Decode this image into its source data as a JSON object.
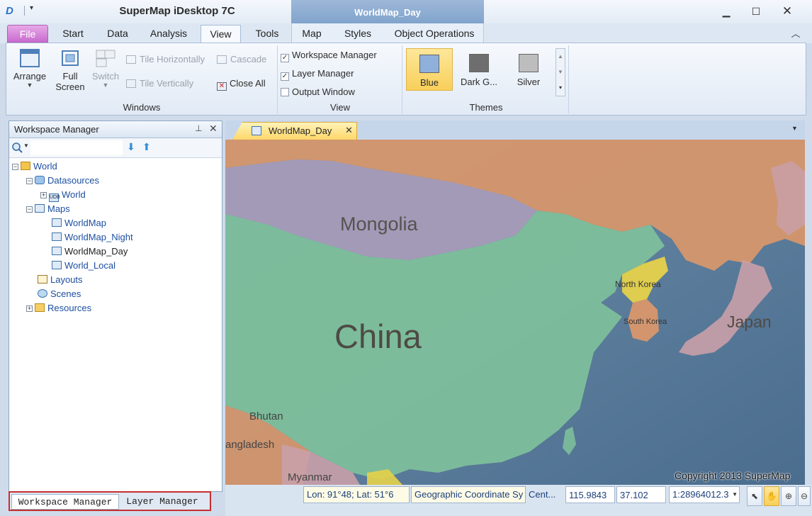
{
  "app": {
    "title": "SuperMap iDesktop 7C",
    "contextual_tab_title": "WorldMap_Day"
  },
  "tabs": [
    "File",
    "Start",
    "Data",
    "Analysis",
    "View",
    "Tools"
  ],
  "active_tab": "View",
  "contextual_tabs": [
    "Map",
    "Styles",
    "Object Operations"
  ],
  "ribbon": {
    "windows": {
      "arrange": "Arrange",
      "full_screen_1": "Full",
      "full_screen_2": "Screen",
      "switch": "Switch",
      "tile_horizontally": "Tile Horizontally",
      "tile_vertically": "Tile Vertically",
      "cascade": "Cascade",
      "close_all": "Close All",
      "label": "Windows"
    },
    "view": {
      "workspace_manager": "Workspace Manager",
      "layer_manager": "Layer Manager",
      "output_window": "Output Window",
      "workspace_manager_checked": true,
      "layer_manager_checked": true,
      "output_window_checked": false,
      "label": "View"
    },
    "themes": {
      "items": [
        {
          "label": "Blue",
          "color": "#8fb0db",
          "selected": true
        },
        {
          "label": "Dark G...",
          "color": "#6e6e6e",
          "selected": false
        },
        {
          "label": "Silver",
          "color": "#bdbdbd",
          "selected": false
        }
      ],
      "label": "Themes"
    }
  },
  "workspace_panel": {
    "title": "Workspace Manager",
    "tree": [
      {
        "label": "World",
        "level": 0,
        "toggle": "-",
        "icon": "workspace-icon"
      },
      {
        "label": "Datasources",
        "level": 1,
        "toggle": "-",
        "icon": "datasources-icon"
      },
      {
        "label": "World",
        "level": 2,
        "toggle": "+",
        "icon": "udb-datasource-icon"
      },
      {
        "label": "Maps",
        "level": 1,
        "toggle": "-",
        "icon": "maps-icon"
      },
      {
        "label": "WorldMap",
        "level": 2,
        "toggle": "",
        "icon": "map-icon"
      },
      {
        "label": "WorldMap_Night",
        "level": 2,
        "toggle": "",
        "icon": "map-icon"
      },
      {
        "label": "WorldMap_Day",
        "level": 2,
        "toggle": "",
        "icon": "map-icon",
        "selected": true
      },
      {
        "label": "World_Local",
        "level": 2,
        "toggle": "",
        "icon": "map-icon"
      },
      {
        "label": "Layouts",
        "level": 1,
        "toggle": "",
        "icon": "layouts-icon"
      },
      {
        "label": "Scenes",
        "level": 1,
        "toggle": "",
        "icon": "scenes-icon"
      },
      {
        "label": "Resources",
        "level": 1,
        "toggle": "+",
        "icon": "resources-folder-icon"
      }
    ]
  },
  "bottom_tabs": [
    "Workspace Manager",
    "Layer Manager"
  ],
  "document_tab": "WorldMap_Day",
  "map": {
    "labels": {
      "mongolia": "Mongolia",
      "china": "China",
      "north_korea": "North Korea",
      "south_korea": "South Korea",
      "japan": "Japan",
      "bhutan": "Bhutan",
      "bangladesh": "angladesh",
      "myanmar": "Myanmar"
    },
    "copyright": "Copyright 2013 SuperMap"
  },
  "status": {
    "lonlat": "Lon: 91°48; Lat: 51°6",
    "coord_system": "Geographic Coordinate Sy",
    "center_label": "Cent...",
    "center_x": "115.9843",
    "center_y": "37.102",
    "scale": "1:28964012.3"
  }
}
